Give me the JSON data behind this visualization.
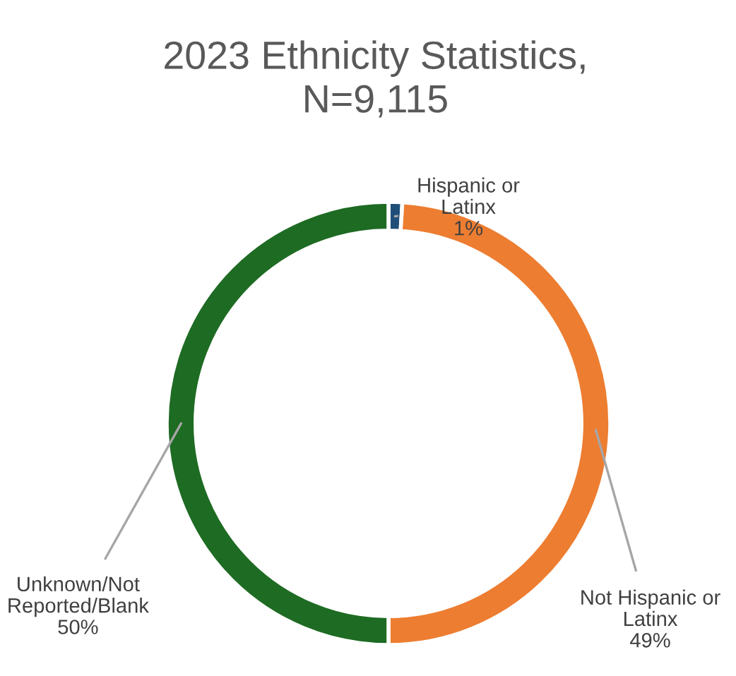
{
  "chart_data": {
    "type": "donut",
    "title": "2023 Ethnicity Statistics,\nN=9,115",
    "categories": [
      "Hispanic or\nLatinx",
      "Not Hispanic or\nLatinx",
      "Unknown/Not\nReported/Blank"
    ],
    "values": [
      1,
      49,
      50
    ],
    "colors": [
      "#1f4e79",
      "#ed7d31",
      "#1e6b23"
    ],
    "value_labels": [
      "1%",
      "49%",
      "50%"
    ],
    "legend": false
  }
}
